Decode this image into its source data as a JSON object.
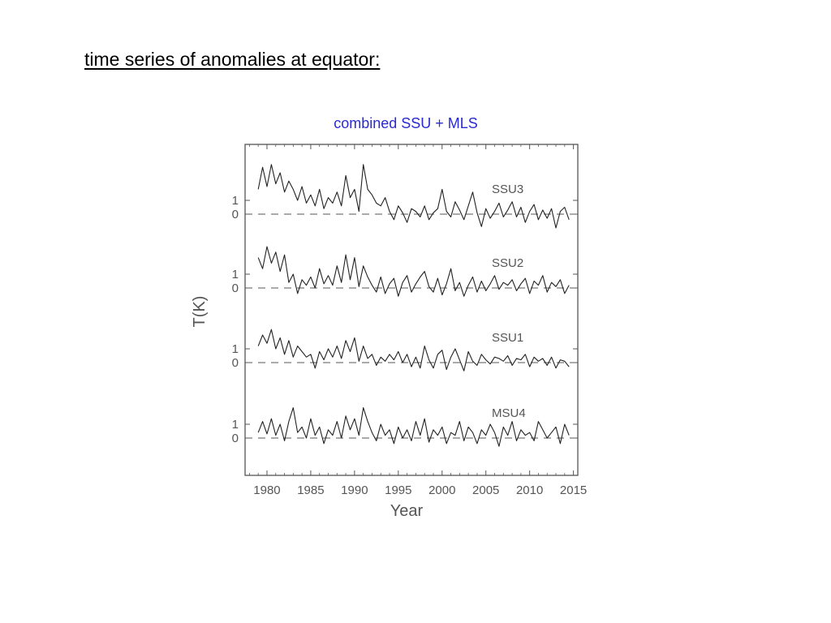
{
  "slide": {
    "title": "time series of anomalies at equator:"
  },
  "colors": {
    "subtitle": "#2a2ad0",
    "trace": "#222222",
    "axis": "#555555"
  },
  "chart_data": {
    "type": "line",
    "title": "combined SSU + MLS",
    "xlabel": "Year",
    "ylabel": "T(K)",
    "xlim": [
      1977.5,
      2015.5
    ],
    "x_ticks": [
      "1980",
      "1985",
      "1990",
      "1995",
      "2000",
      "2005",
      "2010",
      "2015"
    ],
    "x_tick_values": [
      1980,
      1985,
      1990,
      1995,
      2000,
      2005,
      2010,
      2015
    ],
    "y_tick_labels": [
      "0",
      "1"
    ],
    "y_ticks": [
      0,
      1
    ],
    "grid": false,
    "zero_lines": "dashed",
    "x_sample_years": [
      1979.0,
      1979.5,
      1980.0,
      1980.5,
      1981.0,
      1981.5,
      1982.0,
      1982.5,
      1983.0,
      1983.5,
      1984.0,
      1984.5,
      1985.0,
      1985.5,
      1986.0,
      1986.5,
      1987.0,
      1987.5,
      1988.0,
      1988.5,
      1989.0,
      1989.5,
      1990.0,
      1990.5,
      1991.0,
      1991.5,
      1992.0,
      1992.5,
      1993.0,
      1993.5,
      1994.0,
      1994.5,
      1995.0,
      1995.5,
      1996.0,
      1996.5,
      1997.0,
      1997.5,
      1998.0,
      1998.5,
      1999.0,
      1999.5,
      2000.0,
      2000.5,
      2001.0,
      2001.5,
      2002.0,
      2002.5,
      2003.0,
      2003.5,
      2004.0,
      2004.5,
      2005.0,
      2005.5,
      2006.0,
      2006.5,
      2007.0,
      2007.5,
      2008.0,
      2008.5,
      2009.0,
      2009.5,
      2010.0,
      2010.5,
      2011.0,
      2011.5,
      2012.0,
      2012.5,
      2013.0,
      2013.5,
      2014.0,
      2014.5
    ],
    "series": [
      {
        "name": "SSU3",
        "offset_rank": 0,
        "values": [
          1.8,
          3.4,
          2.0,
          3.6,
          2.2,
          3.0,
          1.6,
          2.4,
          1.8,
          1.0,
          2.0,
          0.8,
          1.4,
          0.6,
          1.8,
          0.4,
          1.2,
          0.8,
          1.6,
          0.6,
          2.8,
          1.2,
          1.8,
          0.2,
          3.6,
          1.8,
          1.4,
          0.8,
          0.6,
          1.2,
          0.2,
          -0.4,
          0.6,
          0.1,
          -0.6,
          0.4,
          0.2,
          -0.2,
          0.6,
          -0.4,
          0.1,
          0.4,
          1.8,
          0.2,
          -0.2,
          0.9,
          0.3,
          -0.4,
          0.6,
          1.6,
          0.1,
          -0.9,
          0.4,
          -0.3,
          0.2,
          0.8,
          -0.2,
          0.3,
          0.9,
          -0.2,
          0.5,
          -0.6,
          0.2,
          0.7,
          -0.4,
          0.3,
          -0.3,
          0.4,
          -1.0,
          0.2,
          0.5,
          -0.4
        ]
      },
      {
        "name": "SSU2",
        "offset_rank": 1,
        "values": [
          2.2,
          1.4,
          3.0,
          1.8,
          2.6,
          1.2,
          2.4,
          0.4,
          1.0,
          -0.4,
          0.6,
          0.2,
          0.8,
          0.0,
          1.4,
          0.3,
          0.9,
          0.2,
          1.6,
          0.4,
          2.4,
          0.6,
          2.2,
          0.1,
          1.6,
          0.8,
          0.2,
          -0.3,
          0.8,
          -0.4,
          0.3,
          0.7,
          -0.6,
          0.4,
          0.9,
          -0.3,
          0.3,
          0.8,
          1.2,
          0.1,
          -0.3,
          0.7,
          -0.5,
          0.3,
          1.4,
          -0.2,
          0.4,
          -0.6,
          0.2,
          0.8,
          -0.3,
          0.5,
          -0.2,
          0.3,
          0.9,
          -0.1,
          0.4,
          0.2,
          0.6,
          -0.2,
          0.3,
          0.7,
          -0.4,
          0.5,
          0.2,
          0.9,
          -0.3,
          0.4,
          0.1,
          0.6,
          -0.4,
          0.2
        ]
      },
      {
        "name": "SSU1",
        "offset_rank": 2,
        "values": [
          1.2,
          2.0,
          1.4,
          2.4,
          1.0,
          1.8,
          0.6,
          1.6,
          0.4,
          1.2,
          0.8,
          0.4,
          0.6,
          -0.4,
          0.8,
          0.2,
          1.0,
          0.4,
          1.2,
          0.3,
          1.6,
          0.8,
          1.8,
          0.1,
          1.2,
          0.3,
          0.6,
          -0.2,
          0.4,
          0.1,
          0.6,
          0.2,
          0.8,
          0.0,
          0.6,
          -0.3,
          0.4,
          -0.4,
          1.2,
          0.2,
          -0.4,
          0.6,
          0.9,
          -0.5,
          0.4,
          1.0,
          0.2,
          -0.6,
          0.8,
          0.1,
          -0.2,
          0.6,
          0.2,
          -0.1,
          0.4,
          0.3,
          0.1,
          0.5,
          -0.2,
          0.3,
          0.2,
          0.6,
          -0.3,
          0.4,
          0.1,
          0.3,
          -0.2,
          0.4,
          -0.4,
          0.2,
          0.1,
          -0.3
        ]
      },
      {
        "name": "MSU4",
        "offset_rank": 3,
        "values": [
          0.4,
          1.2,
          0.3,
          1.4,
          0.2,
          1.0,
          -0.2,
          1.2,
          2.2,
          0.4,
          0.8,
          0.0,
          1.4,
          0.2,
          0.8,
          -0.4,
          0.6,
          0.2,
          1.2,
          0.0,
          1.6,
          0.6,
          1.4,
          0.2,
          2.2,
          1.2,
          0.4,
          -0.2,
          1.0,
          0.2,
          0.6,
          -0.4,
          0.8,
          0.0,
          0.6,
          -0.2,
          1.2,
          0.2,
          1.4,
          -0.3,
          0.6,
          0.2,
          0.8,
          -0.4,
          0.4,
          0.2,
          1.2,
          -0.2,
          0.8,
          0.4,
          -0.4,
          0.6,
          0.2,
          1.0,
          0.4,
          -0.6,
          0.8,
          0.2,
          1.2,
          -0.2,
          0.6,
          0.2,
          0.4,
          -0.2,
          1.2,
          0.6,
          0.0,
          0.4,
          0.8,
          -0.4,
          1.0,
          0.2
        ]
      }
    ]
  }
}
